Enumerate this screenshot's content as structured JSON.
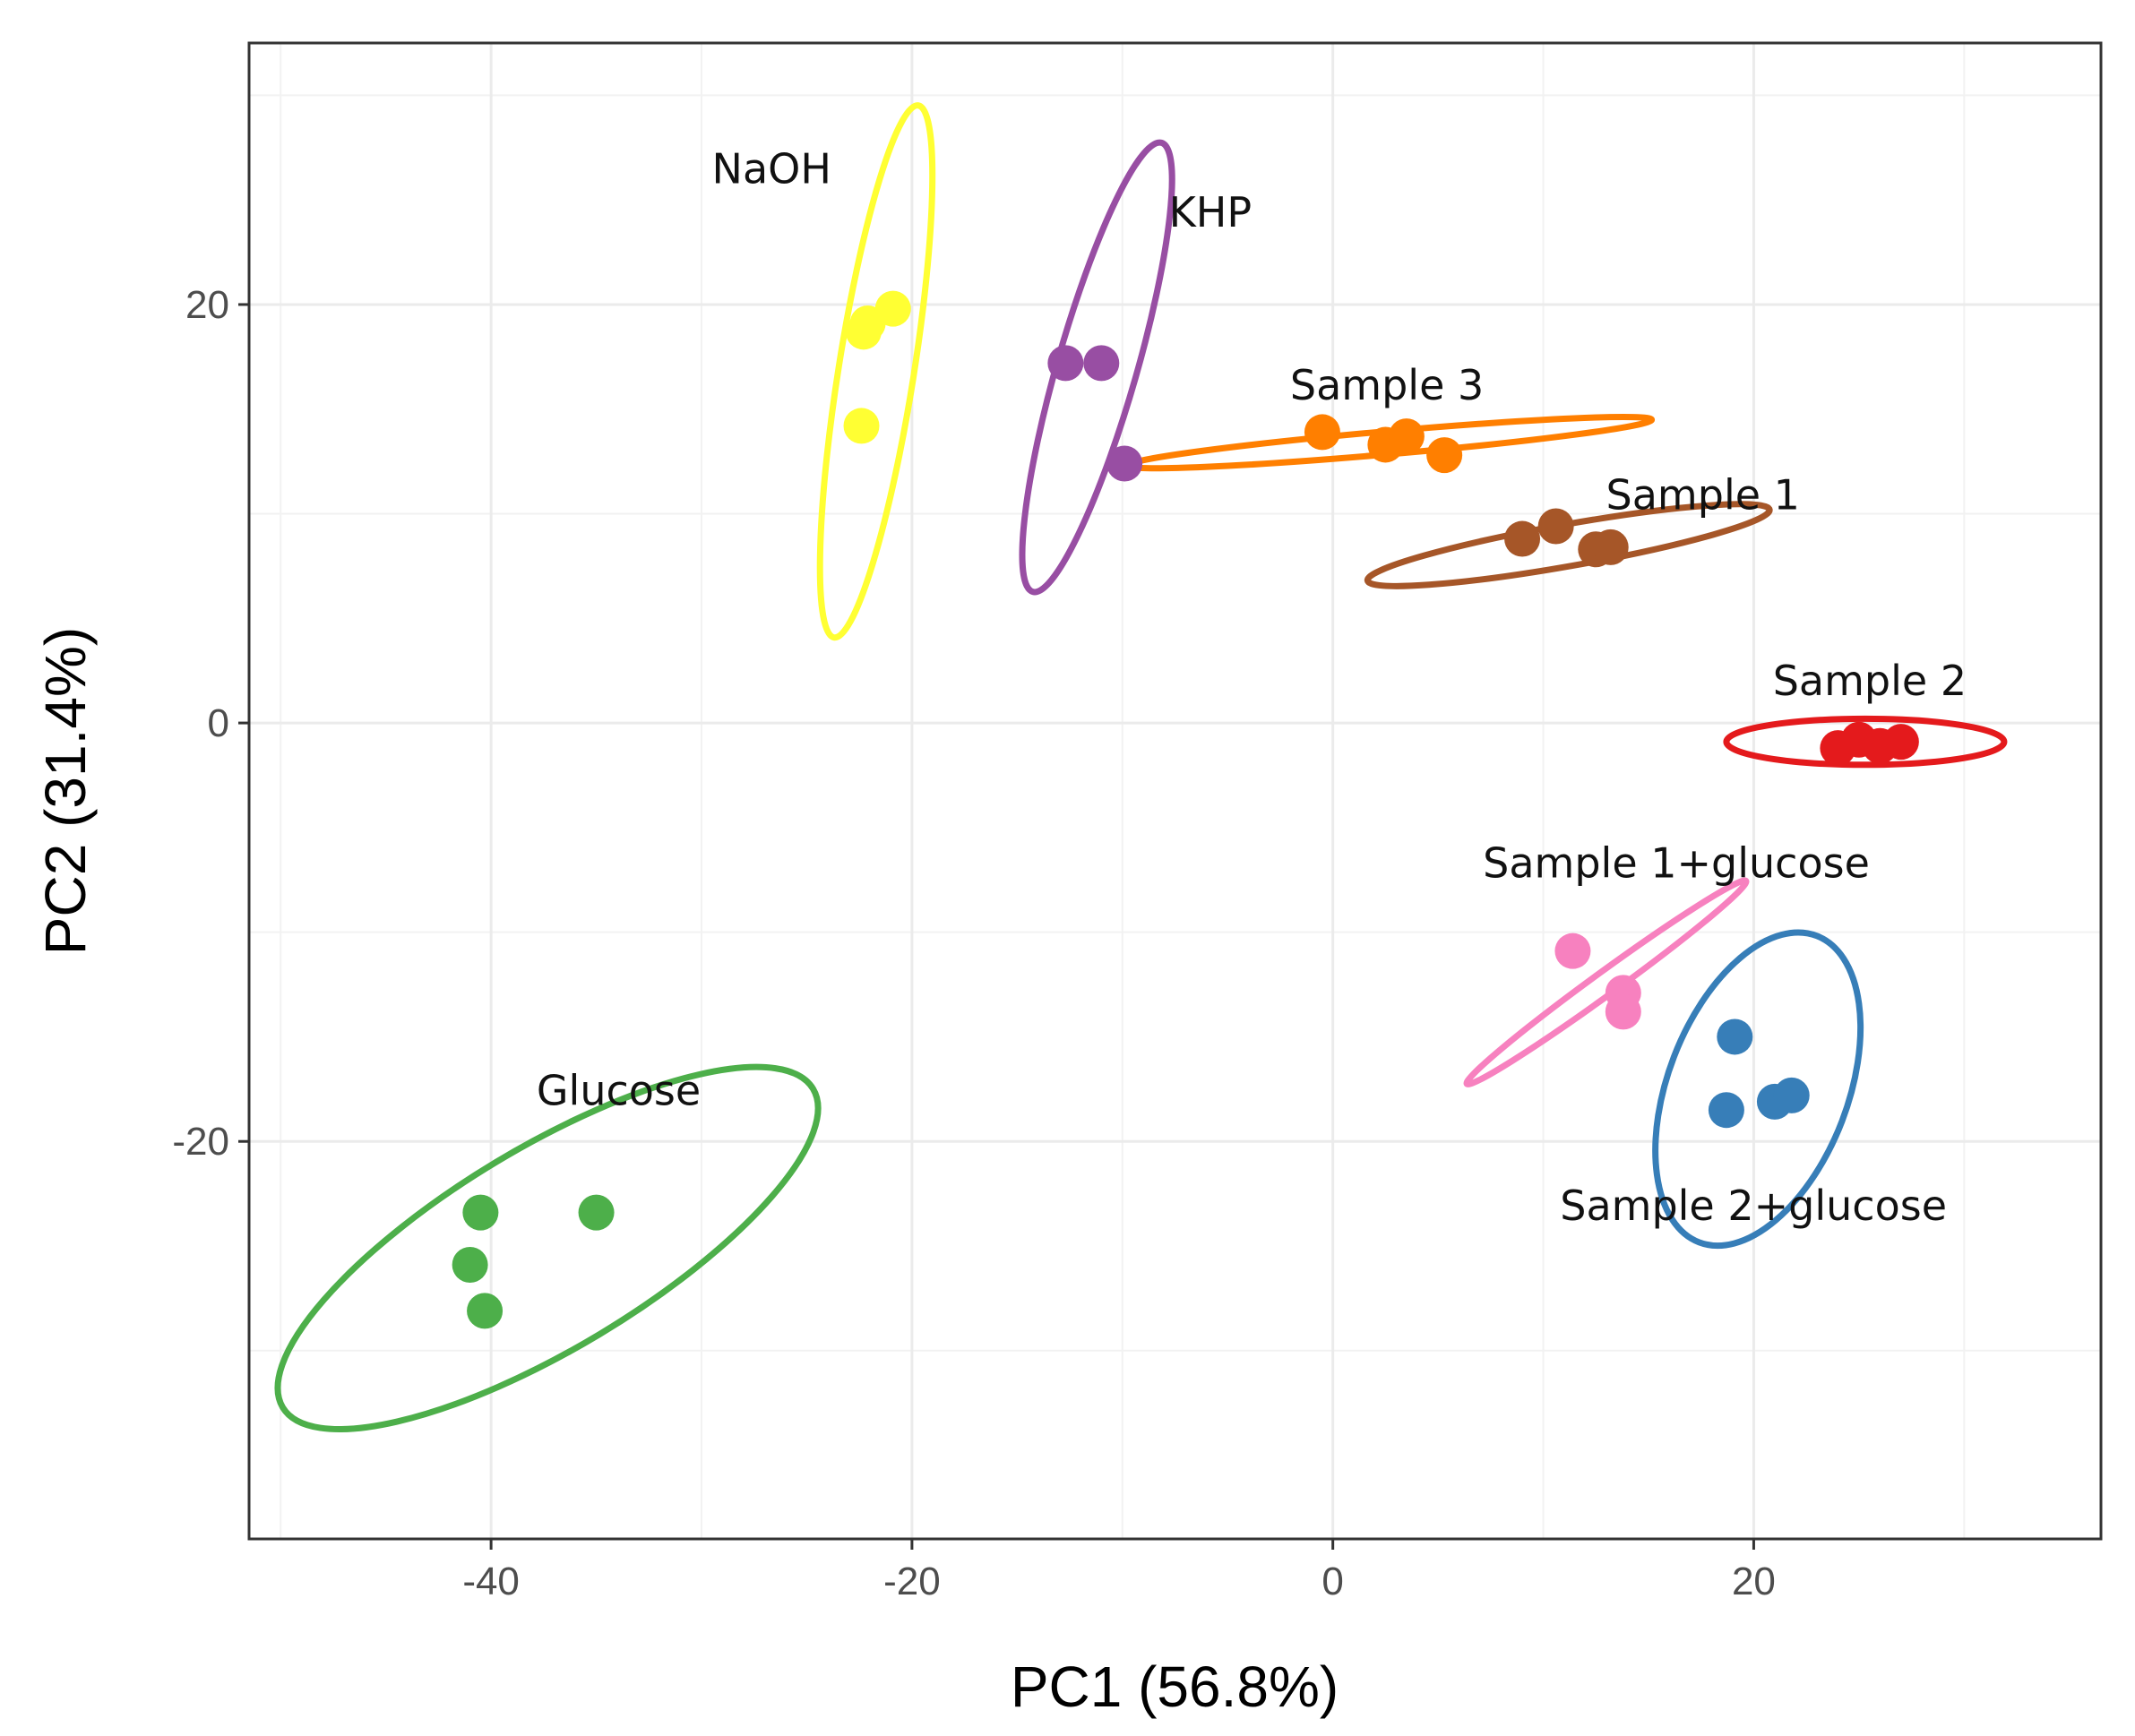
{
  "chart_data": {
    "type": "scatter",
    "title": "",
    "xlabel": "PC1 (56.8%)",
    "ylabel": "PC2 (31.4%)",
    "xlim": [
      -51.5,
      36.5
    ],
    "ylim": [
      -39,
      32.5
    ],
    "xticks": [
      -40,
      -20,
      0,
      20
    ],
    "yticks": [
      -20,
      0,
      20
    ],
    "x_tick_labels": [
      "-40",
      "-20",
      "0",
      "20"
    ],
    "y_tick_labels": [
      "-20",
      "0",
      "20"
    ],
    "grid": true,
    "legend": "none",
    "series": [
      {
        "name": "NaOH",
        "color": "#FFFF33",
        "points": [
          [
            -22.1,
            19.1
          ],
          [
            -20.9,
            19.8
          ],
          [
            -22.4,
            14.2
          ],
          [
            -22.3,
            18.7
          ]
        ],
        "ellipse": {
          "cx": -21.7,
          "cy": 16.8,
          "rx": 12.8,
          "ry": 1.8,
          "angle_deg": 81
        }
      },
      {
        "name": "KHP",
        "color": "#984EA3",
        "points": [
          [
            -12.7,
            17.2
          ],
          [
            -11.0,
            17.2
          ],
          [
            -9.9,
            12.4
          ]
        ],
        "ellipse": {
          "cx": -11.2,
          "cy": 17.0,
          "rx": 11.1,
          "ry": 1.9,
          "angle_deg": 74
        }
      },
      {
        "name": "Sample 3",
        "color": "#FF7F00",
        "points": [
          [
            -0.5,
            13.9
          ],
          [
            2.5,
            13.3
          ],
          [
            3.5,
            13.7
          ],
          [
            5.3,
            12.8
          ]
        ],
        "ellipse": {
          "cx": 2.7,
          "cy": 13.4,
          "rx": 12.5,
          "ry": 0.55,
          "angle_deg": 5
        }
      },
      {
        "name": "Sample 1",
        "color": "#A65628",
        "points": [
          [
            9.0,
            8.8
          ],
          [
            10.6,
            9.4
          ],
          [
            12.5,
            8.3
          ],
          [
            13.2,
            8.4
          ]
        ],
        "ellipse": {
          "cx": 11.2,
          "cy": 8.5,
          "rx": 9.7,
          "ry": 1.0,
          "angle_deg": 10
        }
      },
      {
        "name": "Sample 2",
        "color": "#E41A1C",
        "points": [
          [
            24.0,
            -1.2
          ],
          [
            25.0,
            -0.8
          ],
          [
            26.0,
            -1.1
          ],
          [
            27.0,
            -0.9
          ]
        ],
        "ellipse": {
          "cx": 25.3,
          "cy": -0.9,
          "rx": 6.6,
          "ry": 1.1,
          "angle_deg": 0
        }
      },
      {
        "name": "Sample 1+glucose",
        "color": "#F781BF",
        "points": [
          [
            11.4,
            -10.9
          ],
          [
            13.8,
            -12.9
          ],
          [
            13.8,
            -13.8
          ]
        ],
        "ellipse": {
          "cx": 13.0,
          "cy": -12.4,
          "rx": 8.2,
          "ry": 0.55,
          "angle_deg": 36
        }
      },
      {
        "name": "Sample 2+glucose",
        "color": "#377EB8",
        "points": [
          [
            19.1,
            -15.0
          ],
          [
            18.7,
            -18.5
          ],
          [
            21.0,
            -18.1
          ],
          [
            21.8,
            -17.8
          ]
        ],
        "ellipse": {
          "cx": 20.2,
          "cy": -17.5,
          "rx": 7.8,
          "ry": 4.3,
          "angle_deg": 69
        }
      },
      {
        "name": "Glucose",
        "color": "#4DAF4A",
        "points": [
          [
            -40.5,
            -23.4
          ],
          [
            -35.0,
            -23.4
          ],
          [
            -41.0,
            -25.9
          ],
          [
            -40.3,
            -28.1
          ]
        ],
        "ellipse": {
          "cx": -37.3,
          "cy": -25.1,
          "rx": 14.7,
          "ry": 4.8,
          "angle_deg": 31
        }
      }
    ]
  }
}
